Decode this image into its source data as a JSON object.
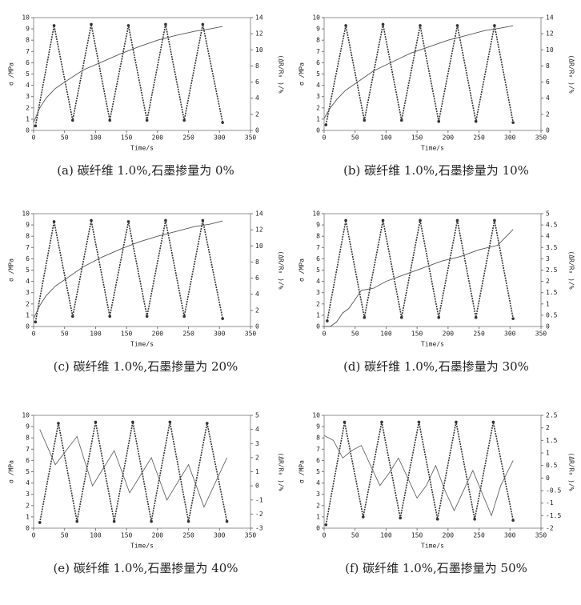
{
  "chart_data": [
    {
      "type": "line",
      "caption": "(a) 碳纤维 1.0%,石墨掺量为 0%",
      "xlabel": "Time/s",
      "ylabel": "σ /MPa",
      "y2label": "(ΔR/R₀ )/%",
      "xlim": [
        0,
        350
      ],
      "xticks": [
        0,
        50,
        100,
        150,
        200,
        250,
        300,
        350
      ],
      "ylim": [
        0,
        10
      ],
      "yticks": [
        0,
        1,
        2,
        3,
        4,
        5,
        6,
        7,
        8,
        9,
        10
      ],
      "y2lim": [
        0,
        14
      ],
      "y2ticks": [
        0,
        2,
        4,
        6,
        8,
        10,
        12,
        14
      ],
      "series": [
        {
          "color": "#333333",
          "markers": true,
          "x": [
            3,
            33,
            63,
            93,
            123,
            153,
            183,
            213,
            243,
            273,
            305
          ],
          "values": [
            0.4,
            9.3,
            0.9,
            9.4,
            0.9,
            9.3,
            0.9,
            9.4,
            0.9,
            9.4,
            0.7
          ]
        },
        {
          "color": "#555555",
          "markers": false,
          "axis": "y2",
          "x": [
            0,
            10,
            20,
            35,
            50,
            80,
            110,
            140,
            170,
            200,
            230,
            260,
            285,
            305
          ],
          "values": [
            1,
            2.8,
            4,
            5.2,
            6,
            7.5,
            8.5,
            9.5,
            10.4,
            11.2,
            11.8,
            12.3,
            12.6,
            12.9
          ]
        }
      ]
    },
    {
      "type": "line",
      "caption": "(b) 碳纤维 1.0%,石墨掺量为 10%",
      "xlabel": "Time/s",
      "ylabel": "σ /MPa",
      "y2label": "(ΔR/R₀ )/%",
      "xlim": [
        0,
        350
      ],
      "xticks": [
        0,
        50,
        100,
        150,
        200,
        250,
        300,
        350
      ],
      "ylim": [
        0,
        10
      ],
      "yticks": [
        0,
        1,
        2,
        3,
        4,
        5,
        6,
        7,
        8,
        9,
        10
      ],
      "y2lim": [
        0,
        14
      ],
      "y2ticks": [
        0,
        2,
        4,
        6,
        8,
        10,
        12,
        14
      ],
      "series": [
        {
          "color": "#333333",
          "markers": true,
          "x": [
            3,
            35,
            65,
            95,
            125,
            155,
            185,
            215,
            245,
            275,
            305
          ],
          "values": [
            0.5,
            9.3,
            0.9,
            9.4,
            0.9,
            9.3,
            0.8,
            9.3,
            0.8,
            9.3,
            0.7
          ]
        },
        {
          "color": "#555555",
          "markers": false,
          "axis": "y2",
          "x": [
            0,
            10,
            20,
            35,
            50,
            80,
            110,
            140,
            170,
            200,
            230,
            260,
            285,
            305
          ],
          "values": [
            1.5,
            2.8,
            3.8,
            5,
            5.8,
            7.4,
            8.5,
            9.6,
            10.4,
            11.2,
            11.8,
            12.4,
            12.7,
            13
          ]
        }
      ]
    },
    {
      "type": "line",
      "caption": "(c) 碳纤维 1.0%,石墨掺量为 20%",
      "xlabel": "Time/s",
      "ylabel": "σ /MPa",
      "y2label": "(ΔR/R₀ )/%",
      "xlim": [
        0,
        350
      ],
      "xticks": [
        0,
        50,
        100,
        150,
        200,
        250,
        300,
        350
      ],
      "ylim": [
        0,
        10
      ],
      "yticks": [
        0,
        1,
        2,
        3,
        4,
        5,
        6,
        7,
        8,
        9,
        10
      ],
      "y2lim": [
        0,
        14
      ],
      "y2ticks": [
        0,
        2,
        4,
        6,
        8,
        10,
        12,
        14
      ],
      "series": [
        {
          "color": "#333333",
          "markers": true,
          "x": [
            3,
            33,
            63,
            93,
            123,
            153,
            183,
            213,
            243,
            273,
            305
          ],
          "values": [
            0.4,
            9.3,
            0.9,
            9.4,
            0.9,
            9.3,
            0.9,
            9.4,
            0.9,
            9.4,
            0.7
          ]
        },
        {
          "color": "#555555",
          "markers": false,
          "axis": "y2",
          "x": [
            0,
            10,
            20,
            35,
            50,
            80,
            110,
            140,
            170,
            200,
            230,
            260,
            285,
            305
          ],
          "values": [
            1,
            2.6,
            3.8,
            5,
            5.8,
            7.4,
            8.6,
            9.6,
            10.5,
            11.2,
            11.8,
            12.4,
            12.7,
            13.1
          ]
        }
      ]
    },
    {
      "type": "line",
      "caption": "(d) 碳纤维 1.0%,石墨掺量为 30%",
      "xlabel": "Time/s",
      "ylabel": "σ /MPa",
      "y2label": "(ΔR/R₀ )/%",
      "xlim": [
        0,
        350
      ],
      "xticks": [
        0,
        50,
        100,
        150,
        200,
        250,
        300,
        350
      ],
      "ylim": [
        0,
        10
      ],
      "yticks": [
        0,
        1,
        2,
        3,
        4,
        5,
        6,
        7,
        8,
        9,
        10
      ],
      "y2lim": [
        0,
        5
      ],
      "y2ticks": [
        0,
        0.5,
        1,
        1.5,
        2,
        2.5,
        3,
        3.5,
        4,
        4.5,
        5
      ],
      "series": [
        {
          "color": "#333333",
          "markers": true,
          "x": [
            5,
            35,
            65,
            95,
            125,
            155,
            185,
            215,
            245,
            275,
            305
          ],
          "values": [
            0.5,
            9.4,
            0.8,
            9.4,
            0.8,
            9.4,
            0.8,
            9.4,
            0.8,
            9.4,
            0.7
          ]
        },
        {
          "color": "#555555",
          "markers": false,
          "axis": "y2",
          "x": [
            0,
            10,
            20,
            30,
            40,
            60,
            80,
            100,
            130,
            160,
            190,
            220,
            250,
            280,
            305
          ],
          "values": [
            0,
            0,
            0.2,
            0.6,
            0.8,
            1.6,
            1.7,
            2,
            2.3,
            2.6,
            2.9,
            3.1,
            3.4,
            3.6,
            4.3
          ]
        }
      ]
    },
    {
      "type": "line",
      "caption": "(e) 碳纤维 1.0%,石墨掺量为 40%",
      "xlabel": "Time/s",
      "ylabel": "σ /MPa",
      "y2label": "(ΔR/R₀ )/%",
      "xlim": [
        0,
        350
      ],
      "xticks": [
        0,
        50,
        100,
        150,
        200,
        250,
        300,
        350
      ],
      "ylim": [
        0,
        10
      ],
      "yticks": [
        0,
        1,
        2,
        3,
        4,
        5,
        6,
        7,
        8,
        9,
        10
      ],
      "y2lim": [
        -3,
        5
      ],
      "y2ticks": [
        -3,
        -2,
        -1,
        0,
        1,
        2,
        3,
        4,
        5
      ],
      "series": [
        {
          "color": "#333333",
          "markers": true,
          "x": [
            10,
            40,
            70,
            100,
            130,
            160,
            190,
            220,
            250,
            280,
            312
          ],
          "values": [
            0.5,
            9.3,
            0.6,
            9.4,
            0.6,
            9.4,
            0.6,
            9.4,
            0.6,
            9.3,
            0.6
          ]
        },
        {
          "color": "#666666",
          "markers": false,
          "axis": "y2",
          "x": [
            10,
            35,
            70,
            95,
            130,
            155,
            190,
            215,
            250,
            275,
            312
          ],
          "values": [
            4,
            1.5,
            3.5,
            0,
            2.5,
            -0.5,
            2,
            -1,
            1.5,
            -1.5,
            2
          ]
        }
      ]
    },
    {
      "type": "line",
      "caption": "(f) 碳纤维 1.0%,石墨掺量为 50%",
      "xlabel": "Time/s",
      "ylabel": "σ /MPa",
      "y2label": "(ΔR/R₀ )/%",
      "xlim": [
        0,
        350
      ],
      "xticks": [
        0,
        50,
        100,
        150,
        200,
        250,
        300,
        350
      ],
      "ylim": [
        0,
        10
      ],
      "yticks": [
        0,
        1,
        2,
        3,
        4,
        5,
        6,
        7,
        8,
        9,
        10
      ],
      "y2lim": [
        -2,
        2.5
      ],
      "y2ticks": [
        -2,
        -1.5,
        -1,
        -0.5,
        0,
        0.5,
        1,
        1.5,
        2,
        2.5
      ],
      "series": [
        {
          "color": "#333333",
          "markers": true,
          "x": [
            3,
            33,
            63,
            93,
            123,
            153,
            183,
            213,
            243,
            273,
            305
          ],
          "values": [
            0.3,
            9.4,
            1,
            9.4,
            0.9,
            9.4,
            0.8,
            9.4,
            0.8,
            9.4,
            0.7
          ]
        },
        {
          "color": "#666666",
          "markers": false,
          "axis": "y2",
          "x": [
            0,
            15,
            30,
            45,
            60,
            75,
            90,
            105,
            120,
            135,
            150,
            165,
            180,
            195,
            210,
            225,
            240,
            255,
            270,
            285,
            305
          ],
          "values": [
            1.7,
            1.5,
            0.8,
            1.1,
            1.3,
            0.5,
            -0.3,
            0.2,
            0.8,
            0,
            -0.8,
            -0.3,
            0.5,
            -0.5,
            -1.3,
            -0.5,
            0.3,
            -0.6,
            -1.5,
            -0.3,
            0.7
          ]
        }
      ]
    }
  ]
}
